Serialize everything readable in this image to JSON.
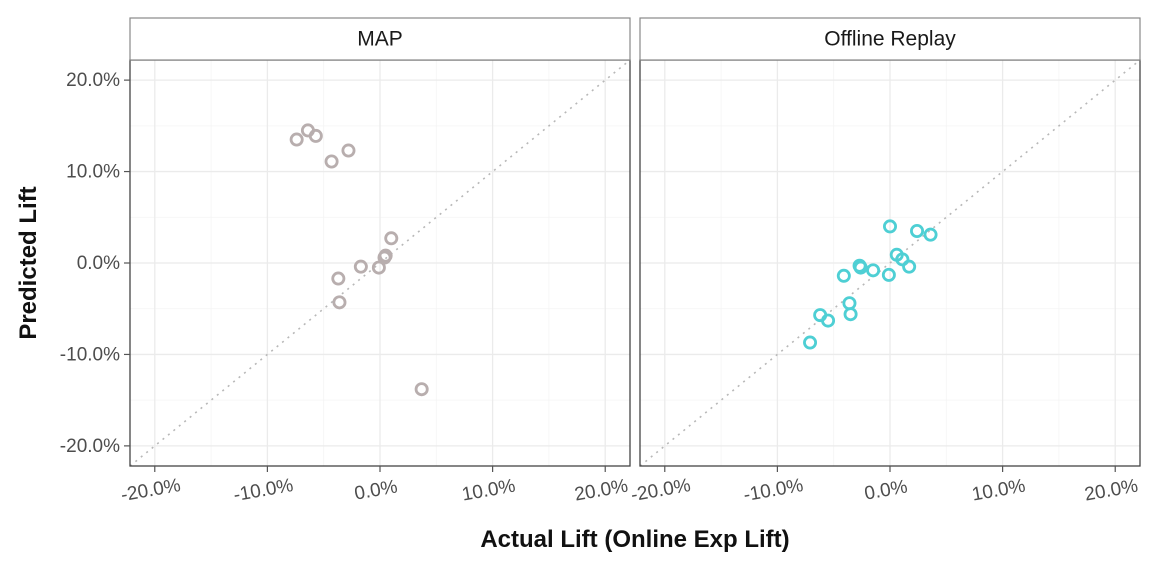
{
  "chart_data": {
    "type": "scatter",
    "xlabel": "Actual Lift (Online Exp Lift)",
    "ylabel": "Predicted Lift",
    "xlim": [
      -0.2,
      0.2
    ],
    "ylim": [
      -0.2,
      0.2
    ],
    "x_ticks": [
      -0.2,
      -0.1,
      0.0,
      0.1,
      0.2
    ],
    "x_tick_labels": [
      "-20.0%",
      "-10.0%",
      "0.0%",
      "10.0%",
      "20.0%"
    ],
    "y_ticks": [
      0.2,
      0.1,
      0.0,
      -0.1,
      -0.2
    ],
    "y_tick_labels": [
      "20.0%",
      "10.0%",
      "0.0%",
      "-10.0%",
      "-20.0%"
    ],
    "reference_line": "y = x (dotted)",
    "grid": true,
    "facets": [
      {
        "label": "MAP",
        "color": "#b8aeae",
        "points": [
          {
            "x": -0.074,
            "y": 0.135
          },
          {
            "x": -0.064,
            "y": 0.145
          },
          {
            "x": -0.057,
            "y": 0.139
          },
          {
            "x": -0.043,
            "y": 0.111
          },
          {
            "x": -0.028,
            "y": 0.123
          },
          {
            "x": 0.01,
            "y": 0.027
          },
          {
            "x": 0.005,
            "y": 0.008
          },
          {
            "x": 0.004,
            "y": 0.006
          },
          {
            "x": -0.001,
            "y": -0.005
          },
          {
            "x": -0.017,
            "y": -0.004
          },
          {
            "x": -0.037,
            "y": -0.017
          },
          {
            "x": -0.036,
            "y": -0.043
          },
          {
            "x": 0.037,
            "y": -0.138
          }
        ]
      },
      {
        "label": "Offline Replay",
        "color": "#4ecfd4",
        "points": [
          {
            "x": 0.0,
            "y": 0.04
          },
          {
            "x": 0.024,
            "y": 0.035
          },
          {
            "x": 0.036,
            "y": 0.031
          },
          {
            "x": 0.006,
            "y": 0.009
          },
          {
            "x": 0.011,
            "y": 0.004
          },
          {
            "x": 0.017,
            "y": -0.004
          },
          {
            "x": -0.027,
            "y": -0.003
          },
          {
            "x": -0.026,
            "y": -0.005
          },
          {
            "x": -0.015,
            "y": -0.008
          },
          {
            "x": -0.001,
            "y": -0.013
          },
          {
            "x": -0.041,
            "y": -0.014
          },
          {
            "x": -0.036,
            "y": -0.044
          },
          {
            "x": -0.035,
            "y": -0.056
          },
          {
            "x": -0.062,
            "y": -0.057
          },
          {
            "x": -0.055,
            "y": -0.063
          },
          {
            "x": -0.071,
            "y": -0.087
          }
        ]
      }
    ]
  }
}
